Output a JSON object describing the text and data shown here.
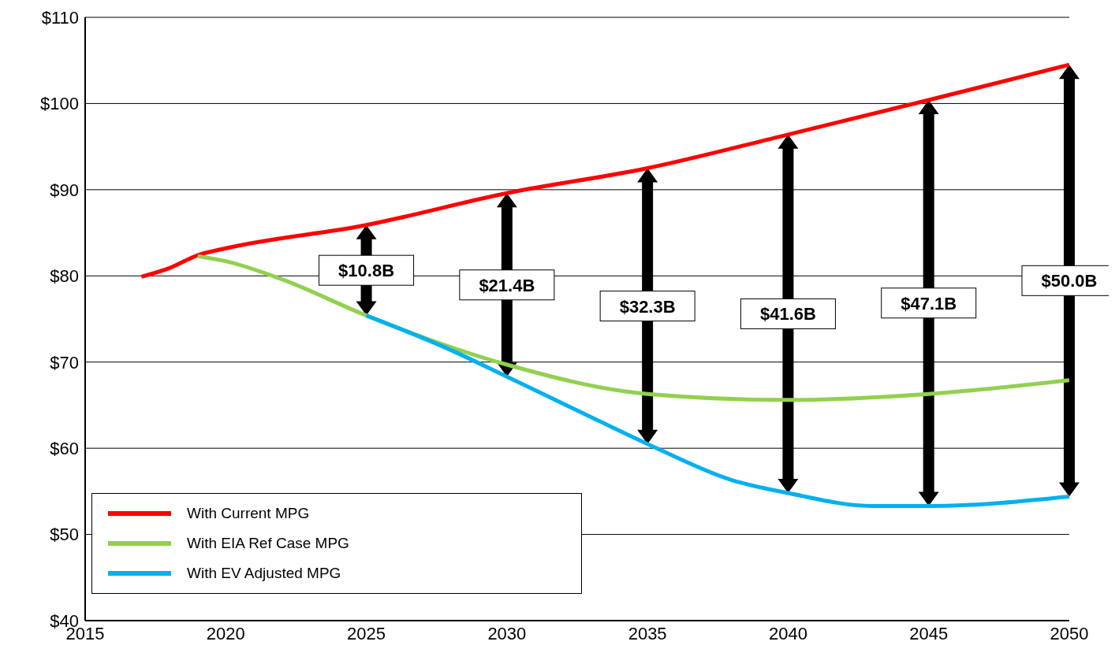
{
  "chart_data": {
    "type": "line",
    "series": [
      {
        "name": "With Current MPG",
        "color": "#ff0000",
        "x": [
          2017,
          2018,
          2019,
          2020,
          2025,
          2030,
          2035,
          2040,
          2045,
          2050
        ],
        "values": [
          79.9,
          80.9,
          82.4,
          83.2,
          85.9,
          89.6,
          92.5,
          96.4,
          100.4,
          104.5
        ]
      },
      {
        "name": "With EIA Ref Case MPG",
        "color": "#92d050",
        "x": [
          2019,
          2020,
          2022,
          2025,
          2030,
          2035,
          2040,
          2045,
          2050
        ],
        "values": [
          82.3,
          81.7,
          79.6,
          75.4,
          69.7,
          66.3,
          65.6,
          66.3,
          67.9
        ]
      },
      {
        "name": "With EV  Adjusted MPG",
        "color": "#00b0f0",
        "x": [
          2025,
          2028,
          2030,
          2033,
          2035,
          2038,
          2040,
          2043,
          2045,
          2050
        ],
        "values": [
          75.4,
          71.4,
          68.3,
          63.6,
          60.5,
          56.3,
          54.8,
          53.3,
          53.3,
          54.4
        ]
      }
    ],
    "xlim": [
      2015,
      2050
    ],
    "xticks": [
      2015,
      2020,
      2025,
      2030,
      2035,
      2040,
      2045,
      2050
    ],
    "ylim": [
      40,
      110
    ],
    "yticks": [
      {
        "value": 40,
        "label": "$40"
      },
      {
        "value": 50,
        "label": "$50"
      },
      {
        "value": 60,
        "label": "$60"
      },
      {
        "value": 70,
        "label": "$70"
      },
      {
        "value": 80,
        "label": "$80"
      },
      {
        "value": 90,
        "label": "$90"
      },
      {
        "value": 100,
        "label": "$100"
      },
      {
        "value": 110,
        "label": "$110"
      }
    ],
    "annotations": [
      "$10.8B",
      "$21.4B",
      "$32.3B",
      "$41.6B",
      "$47.1B",
      "$50.0B"
    ],
    "grid": "y",
    "legend": "bottom left",
    "marker": "none",
    "line_style": "solid"
  }
}
